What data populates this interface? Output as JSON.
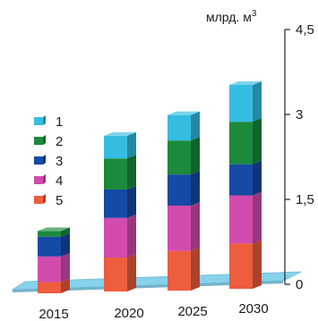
{
  "chart_data": {
    "type": "bar",
    "stacked": true,
    "style": "3d",
    "categories": [
      "2015",
      "2020",
      "2025",
      "2030"
    ],
    "series": [
      {
        "name": "5",
        "values": [
          0.2,
          0.6,
          0.7,
          0.8
        ],
        "color": "#ee5d3d"
      },
      {
        "name": "4",
        "values": [
          0.45,
          0.7,
          0.8,
          0.85
        ],
        "color": "#d24cae"
      },
      {
        "name": "3",
        "values": [
          0.35,
          0.5,
          0.55,
          0.55
        ],
        "color": "#154aa6"
      },
      {
        "name": "2",
        "values": [
          0.1,
          0.55,
          0.6,
          0.75
        ],
        "color": "#1b8a3c"
      },
      {
        "name": "1",
        "values": [
          0.0,
          0.4,
          0.45,
          0.65
        ],
        "color": "#34bde1"
      }
    ],
    "legend_order": [
      "1",
      "2",
      "3",
      "4",
      "5"
    ],
    "legend_position": "left",
    "ylabel": "млрд. м",
    "ylabel_superscript": "3",
    "ylim": [
      0,
      4.5
    ],
    "yticks": [
      0,
      1.5,
      3,
      4.5
    ],
    "ytick_labels": [
      "0",
      "1,5",
      "3",
      "4,5"
    ],
    "floor_color": "#86d2ec",
    "y_axis_side": "right",
    "grid": false
  }
}
